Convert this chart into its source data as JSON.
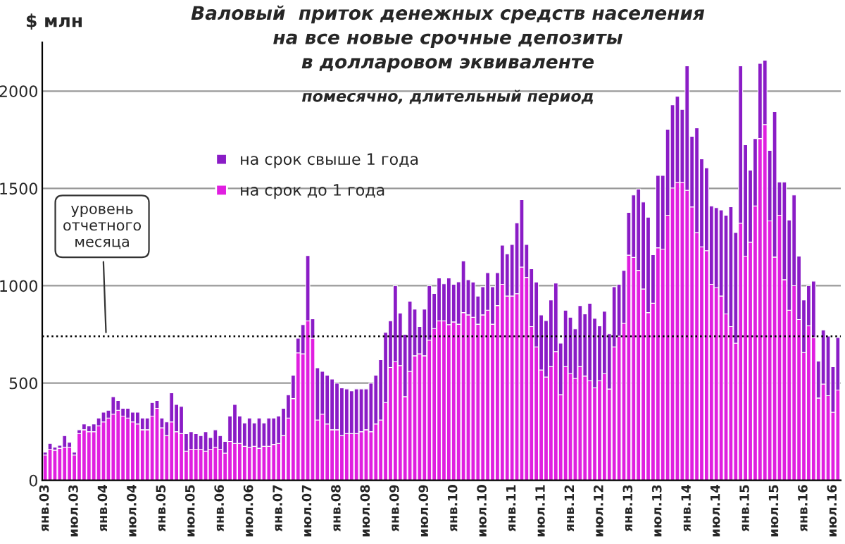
{
  "chart_data": {
    "type": "bar",
    "title": "Валовый  приток денежных средств населения\nна все новые срочные депозиты\nв долларовом эквиваленте",
    "subtitle": "помесячно, длительный период",
    "ylabel": "$ млн",
    "categories": [
      "янв.03",
      null,
      null,
      null,
      null,
      null,
      "июл.03",
      null,
      null,
      null,
      null,
      null,
      "янв.04",
      null,
      null,
      null,
      null,
      null,
      "июл.04",
      null,
      null,
      null,
      null,
      null,
      "янв.05",
      null,
      null,
      null,
      null,
      null,
      "июл.05",
      null,
      null,
      null,
      null,
      null,
      "янв.06",
      null,
      null,
      null,
      null,
      null,
      "июл.06",
      null,
      null,
      null,
      null,
      null,
      "янв.07",
      null,
      null,
      null,
      null,
      null,
      "июл.07",
      null,
      null,
      null,
      null,
      null,
      "янв.08",
      null,
      null,
      null,
      null,
      null,
      "июл.08",
      null,
      null,
      null,
      null,
      null,
      "янв.09",
      null,
      null,
      null,
      null,
      null,
      "июл.09",
      null,
      null,
      null,
      null,
      null,
      "янв.10",
      null,
      null,
      null,
      null,
      null,
      "июл.10",
      null,
      null,
      null,
      null,
      null,
      "янв.11",
      null,
      null,
      null,
      null,
      null,
      "июл.11",
      null,
      null,
      null,
      null,
      null,
      "янв.12",
      null,
      null,
      null,
      null,
      null,
      "июл.12",
      null,
      null,
      null,
      null,
      null,
      "янв.13",
      null,
      null,
      null,
      null,
      null,
      "июл.13",
      null,
      null,
      null,
      null,
      null,
      "янв.14",
      null,
      null,
      null,
      null,
      null,
      "июл.14",
      null,
      null,
      null,
      null,
      null,
      "янв.15",
      null,
      null,
      null,
      null,
      null,
      "июл.15",
      null,
      null,
      null,
      null,
      null,
      "янв.16",
      null,
      null,
      null,
      null,
      null,
      "июл.16",
      null
    ],
    "stacked": true,
    "series": [
      {
        "name": "на срок до 1 года",
        "color": "#e01fe0",
        "values": [
          130,
          160,
          155,
          165,
          170,
          170,
          130,
          240,
          260,
          250,
          250,
          280,
          300,
          320,
          340,
          360,
          330,
          320,
          300,
          290,
          260,
          260,
          330,
          370,
          270,
          230,
          300,
          250,
          240,
          150,
          160,
          160,
          160,
          150,
          160,
          170,
          160,
          140,
          200,
          190,
          190,
          175,
          170,
          175,
          165,
          175,
          175,
          185,
          190,
          230,
          320,
          420,
          655,
          650,
          820,
          730,
          310,
          340,
          290,
          260,
          260,
          230,
          240,
          240,
          240,
          250,
          260,
          250,
          290,
          310,
          400,
          580,
          610,
          590,
          430,
          560,
          640,
          650,
          640,
          720,
          780,
          820,
          820,
          800,
          814,
          802,
          862,
          850,
          838,
          802,
          850,
          874,
          802,
          898,
          1007,
          947,
          947,
          959,
          1096,
          1043,
          790,
          686,
          567,
          531,
          584,
          662,
          440,
          584,
          548,
          524,
          584,
          536,
          512,
          476,
          512,
          548,
          469,
          686,
          741,
          807,
          1157,
          1145,
          1079,
          983,
          862,
          910,
          1195,
          1188,
          1362,
          1502,
          1531,
          1531,
          1490,
          1405,
          1273,
          1200,
          1180,
          1007,
          990,
          947,
          855,
          790,
          705,
          1321,
          1152,
          1224,
          1410,
          1756,
          1828,
          1333,
          1147,
          1362,
          1031,
          874,
          1000,
          826,
          657,
          794,
          734,
          423,
          495,
          435,
          350,
          464
        ]
      },
      {
        "name": "на срок свыше 1 года",
        "color": "#8a1cc6",
        "values": [
          15,
          30,
          15,
          15,
          60,
          25,
          15,
          20,
          30,
          30,
          40,
          40,
          50,
          40,
          90,
          50,
          40,
          50,
          50,
          60,
          60,
          60,
          70,
          40,
          50,
          70,
          150,
          140,
          140,
          90,
          90,
          80,
          70,
          100,
          60,
          90,
          70,
          60,
          130,
          200,
          140,
          120,
          150,
          120,
          155,
          120,
          145,
          135,
          140,
          140,
          120,
          120,
          75,
          150,
          335,
          100,
          268,
          220,
          250,
          260,
          240,
          245,
          230,
          220,
          230,
          220,
          210,
          250,
          250,
          310,
          360,
          240,
          390,
          270,
          320,
          360,
          240,
          140,
          240,
          280,
          180,
          220,
          190,
          240,
          193,
          218,
          266,
          181,
          181,
          145,
          145,
          193,
          193,
          169,
          201,
          217,
          265,
          364,
          346,
          169,
          297,
          333,
          283,
          290,
          343,
          352,
          265,
          290,
          290,
          254,
          314,
          319,
          398,
          357,
          282,
          321,
          284,
          309,
          266,
          272,
          220,
          321,
          418,
          447,
          490,
          249,
          372,
          379,
          442,
          428,
          442,
          375,
          640,
          363,
          538,
          452,
          426,
          403,
          411,
          442,
          507,
          616,
          568,
          809,
          572,
          370,
          346,
          386,
          331,
          362,
          747,
          171,
          502,
          464,
          466,
          326,
          270,
          206,
          290,
          190,
          278,
          306,
          234,
          270
        ]
      }
    ],
    "ylim": [
      0,
      2250
    ],
    "yticks": [
      0,
      500,
      1000,
      1500,
      2000
    ],
    "grid": "y",
    "legend": "top left",
    "ref_lines": [
      {
        "axis": "y",
        "value": 740,
        "label": "уровень\nотчетного\nмесяца",
        "line_style": "dotted",
        "color": "#000000"
      }
    ]
  }
}
